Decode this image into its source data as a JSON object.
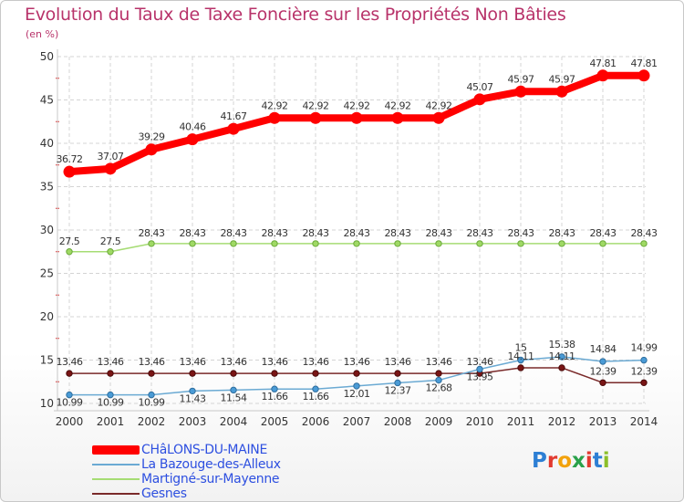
{
  "title": "Evolution du Taux de Taxe Foncière sur les Propriétés Non Bâties",
  "unit": "(en %)",
  "brand": "Proxiti",
  "brand_colors": [
    "#2d7fd4",
    "#e23a2f",
    "#f2a20c",
    "#2aa14a",
    "#e23a2f",
    "#2d7fd4",
    "#8cbf2a"
  ],
  "chart_data": {
    "type": "line",
    "title": "Evolution du Taux de Taxe Foncière sur les Propriétés Non Bâties",
    "ylabel": "(en %)",
    "xlabel": "",
    "x": [
      "2000",
      "2001",
      "2002",
      "2003",
      "2004",
      "2005",
      "2006",
      "2007",
      "2008",
      "2009",
      "2010",
      "2011",
      "2012",
      "2013",
      "2014"
    ],
    "ylim": [
      10,
      50
    ],
    "yticks": [
      "10",
      "15",
      "20",
      "25",
      "30",
      "35",
      "40",
      "45",
      "50"
    ],
    "grid": true,
    "legend": "bottom-left",
    "series": [
      {
        "name": "CHâLONS-DU-MAINE",
        "color": "#ff0000",
        "values": [
          36.72,
          37.07,
          39.29,
          40.46,
          41.67,
          42.92,
          42.92,
          42.92,
          42.92,
          42.92,
          45.07,
          45.97,
          45.97,
          47.81,
          47.81
        ],
        "labels": [
          "36.72",
          "37.07",
          "39.29",
          "40.46",
          "41.67",
          "42.92",
          "42.92",
          "42.92",
          "42.92",
          "42.92",
          "45.07",
          "45.97",
          "45.97",
          "47.81",
          "47.81"
        ]
      },
      {
        "name": "La Bazouge-des-Alleux",
        "color": "#6baad3",
        "values": [
          10.99,
          10.99,
          10.99,
          11.43,
          11.54,
          11.66,
          11.66,
          12.01,
          12.37,
          12.68,
          13.95,
          15,
          15.38,
          14.84,
          14.99
        ],
        "labels": [
          "10.99",
          "10.99",
          "10.99",
          "11.43",
          "11.54",
          "11.66",
          "11.66",
          "12.01",
          "12.37",
          "12.68",
          "13.95",
          "15",
          "15.38",
          "14.84",
          "14.99"
        ]
      },
      {
        "name": "Martigné-sur-Mayenne",
        "color": "#a6dc74",
        "values": [
          27.5,
          27.5,
          28.43,
          28.43,
          28.43,
          28.43,
          28.43,
          28.43,
          28.43,
          28.43,
          28.43,
          28.43,
          28.43,
          28.43,
          28.43
        ],
        "labels": [
          "27.5",
          "27.5",
          "28.43",
          "28.43",
          "28.43",
          "28.43",
          "28.43",
          "28.43",
          "28.43",
          "28.43",
          "28.43",
          "28.43",
          "28.43",
          "28.43",
          "28.43"
        ]
      },
      {
        "name": "Gesnes",
        "color": "#7a2a2a",
        "values": [
          13.46,
          13.46,
          13.46,
          13.46,
          13.46,
          13.46,
          13.46,
          13.46,
          13.46,
          13.46,
          13.46,
          14.11,
          14.11,
          12.39,
          12.39
        ],
        "labels": [
          "13.46",
          "13.46",
          "13.46",
          "13.46",
          "13.46",
          "13.46",
          "13.46",
          "13.46",
          "13.46",
          "13.46",
          "13.46",
          "14.11",
          "14.11",
          "12.39",
          "12.39"
        ]
      }
    ]
  }
}
